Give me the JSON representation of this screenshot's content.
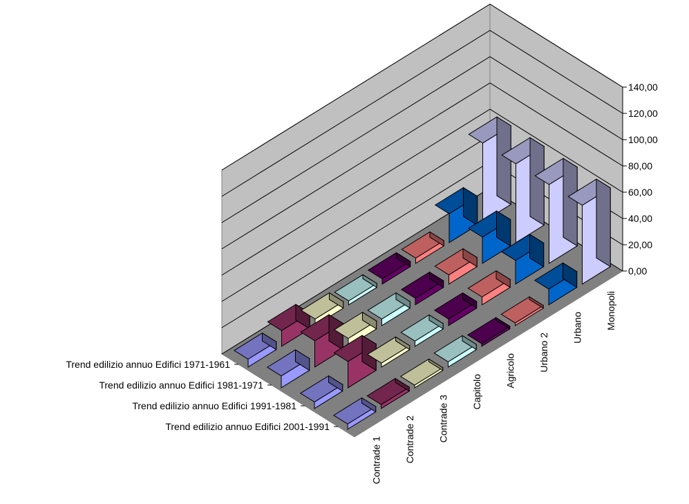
{
  "chart_data": {
    "type": "area",
    "view": "3d-ribbon",
    "categories": [
      "Contrade 1",
      "Contrade 2",
      "Contrade 3",
      "Capitolo",
      "Agricolo",
      "Urbano 2",
      "Urbano",
      "Monopoli"
    ],
    "series": [
      {
        "name": "Trend edilizio annuo Edifici  2001-1991",
        "values": [
          4,
          3,
          2,
          4,
          2,
          2,
          12,
          60
        ]
      },
      {
        "name": "Trend edilizio annuo Edifici  1991-1981",
        "values": [
          5,
          20,
          3,
          4,
          5,
          6,
          18,
          60
        ]
      },
      {
        "name": "Trend edilizio annuo Edifici  1981-1971",
        "values": [
          9,
          20,
          6,
          5,
          5,
          7,
          20,
          60
        ]
      },
      {
        "name": "Trend edilizio annuo Edifici  1971-1961",
        "values": [
          6,
          12,
          5,
          3,
          4,
          4,
          22,
          60
        ]
      }
    ],
    "series_colors": [
      "#9999ff",
      "#993366",
      "#ffffcc",
      "#ccffff",
      "#660066",
      "#ff8080",
      "#0066cc",
      "#ccccff"
    ],
    "yticks": [
      "0,00",
      "20,00",
      "40,00",
      "60,00",
      "80,00",
      "100,00",
      "120,00",
      "140,00"
    ],
    "ylim": [
      0,
      140
    ],
    "grid": true,
    "legend": "none"
  }
}
